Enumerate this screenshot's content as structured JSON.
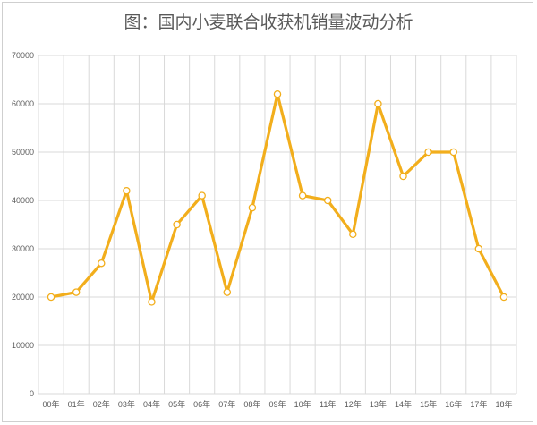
{
  "chart_data": {
    "type": "line",
    "title": "图：国内小麦联合收获机销量波动分析",
    "categories": [
      "00年",
      "01年",
      "02年",
      "03年",
      "04年",
      "05年",
      "06年",
      "07年",
      "08年",
      "09年",
      "10年",
      "11年",
      "12年",
      "13年",
      "14年",
      "15年",
      "16年",
      "17年",
      "18年"
    ],
    "series": [
      {
        "values": [
          20000,
          21000,
          27000,
          42000,
          19000,
          35000,
          41000,
          21000,
          38500,
          62000,
          41000,
          40000,
          33000,
          60000,
          45000,
          50000,
          50000,
          30000,
          20000
        ]
      }
    ],
    "ylim": [
      0,
      70000
    ],
    "yticks": [
      "0",
      "10000",
      "20000",
      "30000",
      "40000",
      "50000",
      "60000",
      "70000"
    ],
    "grid": true,
    "colors": {
      "line": "#f2ae1c",
      "marker_fill": "#ffffff",
      "grid": "#d9d9d9"
    }
  }
}
